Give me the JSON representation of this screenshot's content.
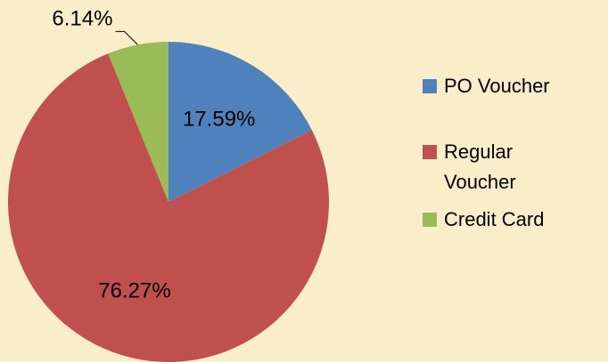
{
  "chart_data": {
    "type": "pie",
    "categories": [
      "PO Voucher",
      "Regular Voucher",
      "Credit Card"
    ],
    "values": [
      17.59,
      76.27,
      6.14
    ],
    "value_labels": [
      "17.59%",
      "76.27%",
      "6.14%"
    ],
    "colors": [
      "#4f81bd",
      "#c0504d",
      "#9bbb59"
    ],
    "legend": "right"
  }
}
